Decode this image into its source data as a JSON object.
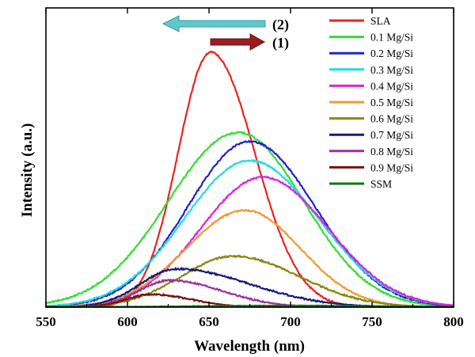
{
  "chart_data": {
    "type": "line",
    "title": "",
    "xlabel": "Wavelength (nm)",
    "ylabel": "Intensity (a.u.)",
    "xlim": [
      550,
      800
    ],
    "ylim": [
      0,
      1.0
    ],
    "x_ticks": [
      "550",
      "600",
      "650",
      "700",
      "750",
      "800"
    ],
    "y_ticks_labeled": false,
    "grid": false,
    "legend_position": "top-right",
    "annotations": [
      {
        "label": "(2)",
        "arrow_direction": "left",
        "color": "#5fc8cf"
      },
      {
        "label": "(1)",
        "arrow_direction": "right",
        "color": "#9b1d1d"
      }
    ],
    "series": [
      {
        "name": "SLA",
        "color": "#ee2222",
        "peak_x": 651,
        "peak_y": 1.0,
        "sigma_left": 20,
        "sigma_right": 27
      },
      {
        "name": "0.1 Mg/Si",
        "color": "#33dd33",
        "peak_x": 668,
        "peak_y": 0.685,
        "sigma_left": 43,
        "sigma_right": 40
      },
      {
        "name": "0.2 Mg/Si",
        "color": "#2222cc",
        "peak_x": 675,
        "peak_y": 0.65,
        "sigma_left": 38,
        "sigma_right": 40
      },
      {
        "name": "0.3 Mg/Si",
        "color": "#22dddd",
        "peak_x": 675,
        "peak_y": 0.575,
        "sigma_left": 40,
        "sigma_right": 42
      },
      {
        "name": "0.4 Mg/Si",
        "color": "#dd22dd",
        "peak_x": 683,
        "peak_y": 0.51,
        "sigma_left": 38,
        "sigma_right": 40
      },
      {
        "name": "0.5 Mg/Si",
        "color": "#f29a33",
        "peak_x": 672,
        "peak_y": 0.38,
        "sigma_left": 36,
        "sigma_right": 34
      },
      {
        "name": "0.6 Mg/Si",
        "color": "#888811",
        "peak_x": 665,
        "peak_y": 0.2,
        "sigma_left": 32,
        "sigma_right": 40
      },
      {
        "name": "0.7 Mg/Si",
        "color": "#1a1a77",
        "peak_x": 630,
        "peak_y": 0.15,
        "sigma_left": 22,
        "sigma_right": 45
      },
      {
        "name": "0.8 Mg/Si",
        "color": "#993399",
        "peak_x": 626,
        "peak_y": 0.105,
        "sigma_left": 19,
        "sigma_right": 32
      },
      {
        "name": "0.9 Mg/Si",
        "color": "#771111",
        "peak_x": 615,
        "peak_y": 0.05,
        "sigma_left": 16,
        "sigma_right": 24
      },
      {
        "name": "SSM",
        "color": "#117711",
        "peak_x": 700,
        "peak_y": 0.006,
        "sigma_left": 60,
        "sigma_right": 60
      }
    ]
  }
}
